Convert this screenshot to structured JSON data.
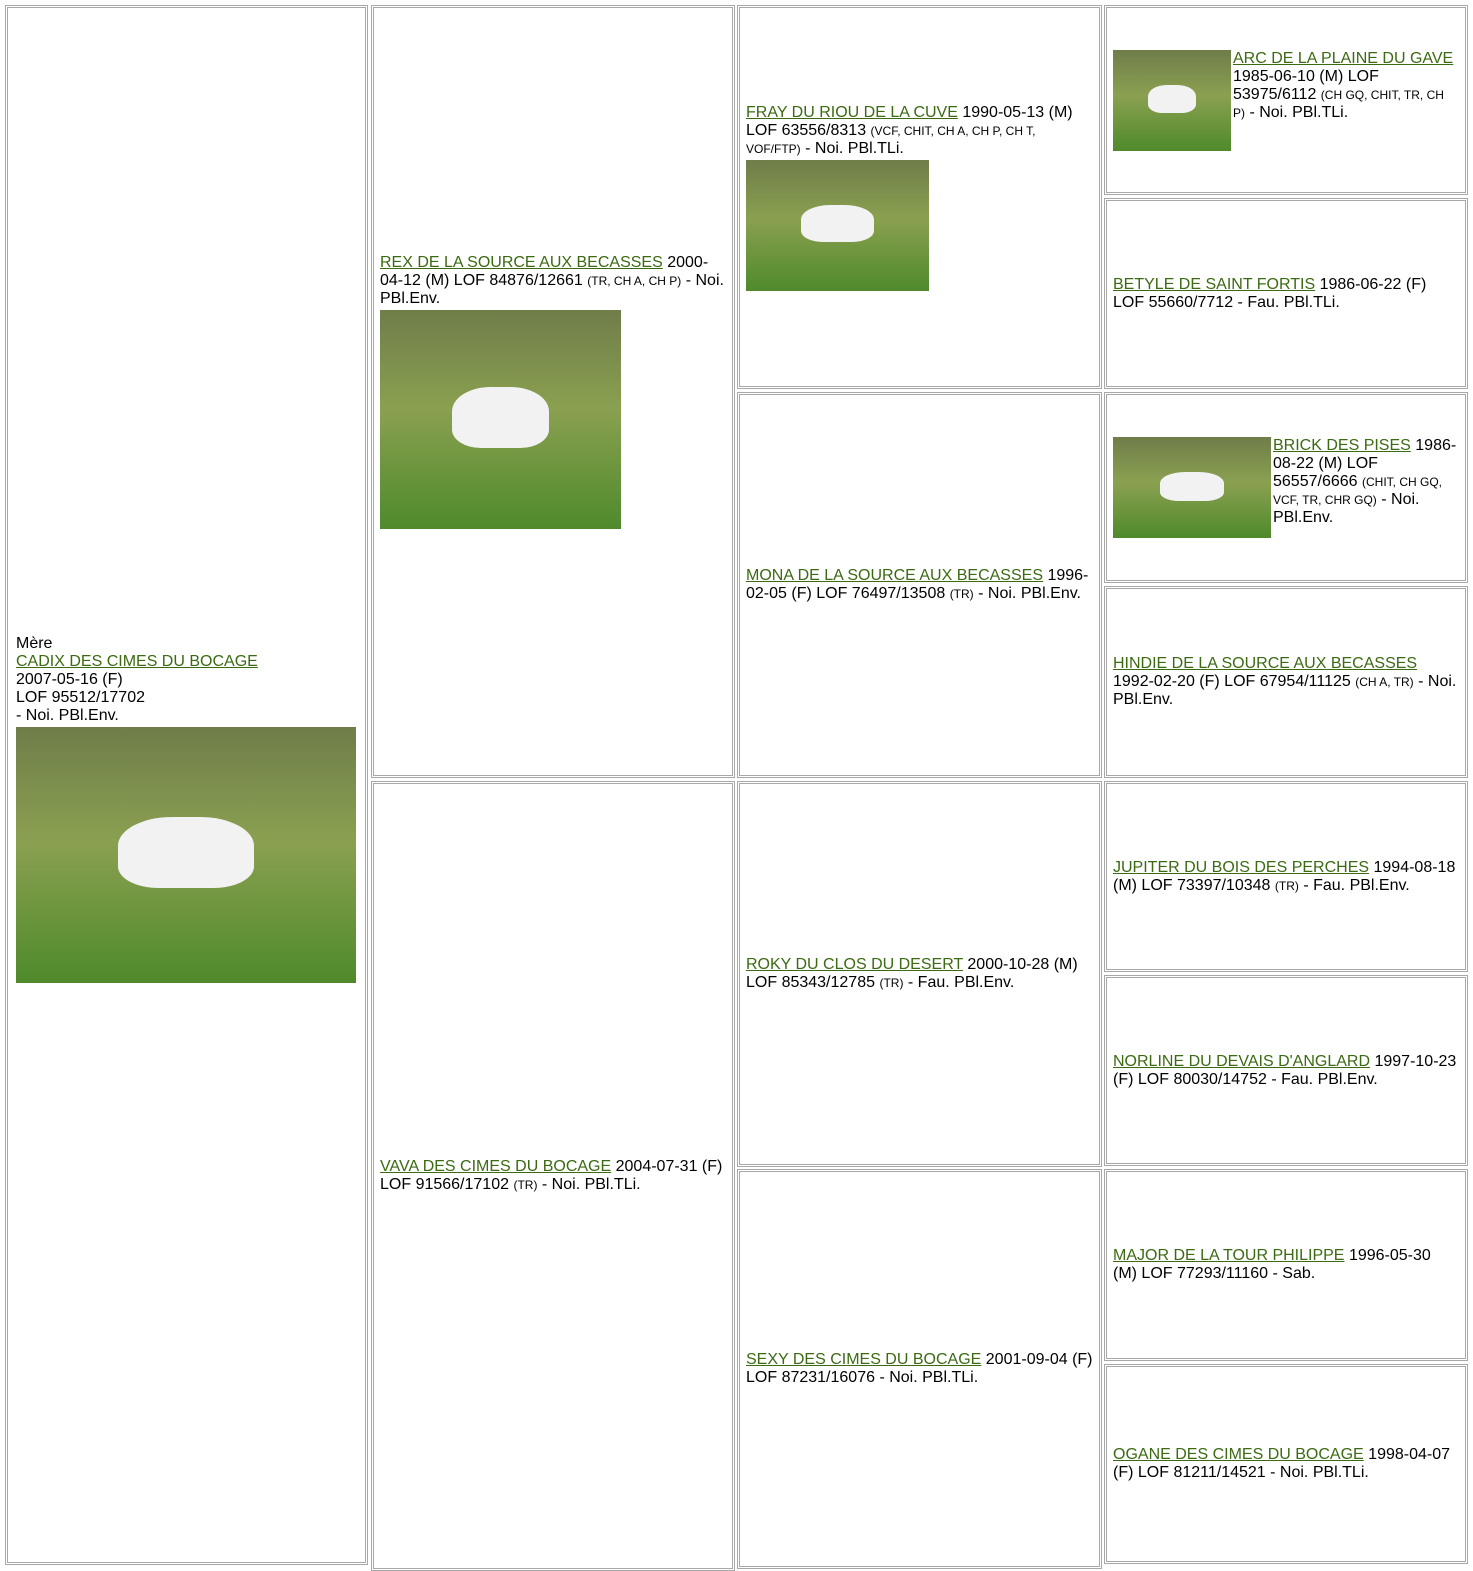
{
  "dam": {
    "label": "Mère",
    "name": "CADIX DES CIMES DU BOCAGE",
    "lines": [
      "2007-05-16 (F)",
      "LOF 95512/17702",
      "- Noi. PBl.Env."
    ]
  },
  "generations": [
    [
      {
        "name": "REX DE LA SOURCE AUX BECASSES",
        "details": "2000-04-12 (M) LOF 84876/12661",
        "titles": "(TR, CH A, CH P)",
        "coat": "- Noi. PBl.Env."
      },
      {
        "name": "VAVA DES CIMES DU BOCAGE",
        "details": "2004-07-31 (F) LOF 91566/17102",
        "titles": "(TR)",
        "coat": "- Noi. PBl.TLi."
      }
    ],
    [
      {
        "name": "FRAY DU RIOU DE LA CUVE",
        "details": "1990-05-13 (M) LOF 63556/8313",
        "titles": "(VCF, CHIT, CH A, CH P, CH T, VOF/FTP)",
        "coat": "- Noi. PBl.TLi."
      },
      {
        "name": "MONA DE LA SOURCE AUX BECASSES",
        "details": "1996-02-05 (F) LOF 76497/13508",
        "titles": "(TR)",
        "coat": "- Noi. PBl.Env."
      },
      {
        "name": "ROKY DU CLOS DU DESERT",
        "details": "2000-10-28 (M) LOF 85343/12785",
        "titles": "(TR)",
        "coat": "- Fau. PBl.Env."
      },
      {
        "name": "SEXY DES CIMES DU BOCAGE",
        "details": "2001-09-04 (F) LOF 87231/16076",
        "coat": "- Noi. PBl.TLi."
      }
    ],
    [
      {
        "name": "ARC DE LA PLAINE DU GAVE",
        "details": "1985-06-10 (M) LOF 53975/6112",
        "titles": "(CH GQ, CHIT, TR, CH P)",
        "coat": "- Noi. PBl.TLi."
      },
      {
        "name": "BETYLE DE SAINT FORTIS",
        "details": "1986-06-22 (F) LOF 55660/7712",
        "coat": "- Fau. PBl.TLi."
      },
      {
        "name": "BRICK DES PISES",
        "details": "1986-08-22 (M) LOF 56557/6666",
        "titles": "(CHIT, CH GQ, VCF, TR, CHR GQ)",
        "coat": "- Noi. PBl.Env."
      },
      {
        "name": "HINDIE DE LA SOURCE AUX BECASSES",
        "details": "1992-02-20 (F) LOF 67954/11125",
        "titles": "(CH A, TR)",
        "coat": "- Noi. PBl.Env."
      },
      {
        "name": "JUPITER DU BOIS DES PERCHES",
        "details": "1994-08-18 (M) LOF 73397/10348",
        "titles": "(TR)",
        "coat": "- Fau. PBl.Env."
      },
      {
        "name": "NORLINE DU DEVAIS D'ANGLARD",
        "details": "1997-10-23 (F) LOF 80030/14752",
        "coat": "- Fau. PBl.Env."
      },
      {
        "name": "MAJOR DE LA TOUR PHILIPPE",
        "details": "1996-05-30 (M) LOF 77293/11160",
        "coat": "- Sab."
      },
      {
        "name": "OGANE DES CIMES DU BOCAGE",
        "details": "1998-04-07 (F) LOF 81211/14521",
        "coat": "- Noi. PBl.TLi."
      }
    ]
  ]
}
